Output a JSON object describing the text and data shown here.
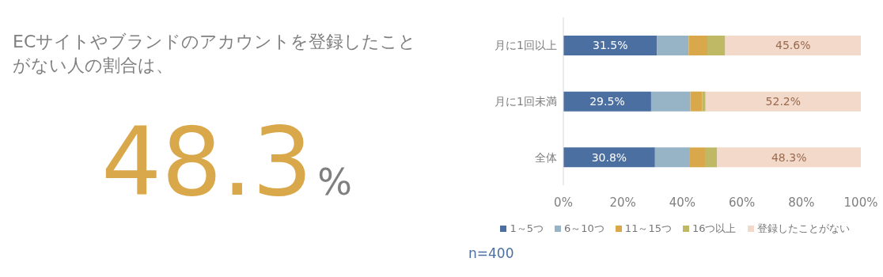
{
  "chart_data": {
    "type": "bar",
    "orientation": "horizontal",
    "stacked": true,
    "title": "ECサイトやブランドのアカウントを登録したことがない人の割合は、",
    "annotations": [
      "48.3%",
      "n=400"
    ],
    "categories": [
      "月に1回以上",
      "月に1回未満",
      "全体"
    ],
    "series": [
      {
        "name": "1～5つ",
        "color": "#4a6fa0",
        "values": [
          31.5,
          29.5,
          30.8
        ],
        "value_labels": [
          "31.5%",
          "29.5%",
          "30.8%"
        ]
      },
      {
        "name": "6～10つ",
        "color": "#97b3c6",
        "values": [
          10.6,
          13.2,
          11.5
        ]
      },
      {
        "name": "11～15つ",
        "color": "#d9a84a",
        "values": [
          6.3,
          4.0,
          5.3
        ]
      },
      {
        "name": "16つ以上",
        "color": "#bfb966",
        "values": [
          6.0,
          1.1,
          4.1
        ]
      },
      {
        "name": "登録したことがない",
        "color": "#f2d9c9",
        "values": [
          45.6,
          52.2,
          48.3
        ],
        "value_labels": [
          "45.6%",
          "52.2%",
          "48.3%"
        ]
      }
    ],
    "xlim": [
      0,
      100
    ],
    "xticks": [
      {
        "value": 0,
        "label": "0%"
      },
      {
        "value": 20,
        "label": "20%"
      },
      {
        "value": 40,
        "label": "40%"
      },
      {
        "value": 60,
        "label": "60%"
      },
      {
        "value": 80,
        "label": "80%"
      },
      {
        "value": 100,
        "label": "100%"
      }
    ],
    "legend": "bottom",
    "grid": false
  }
}
